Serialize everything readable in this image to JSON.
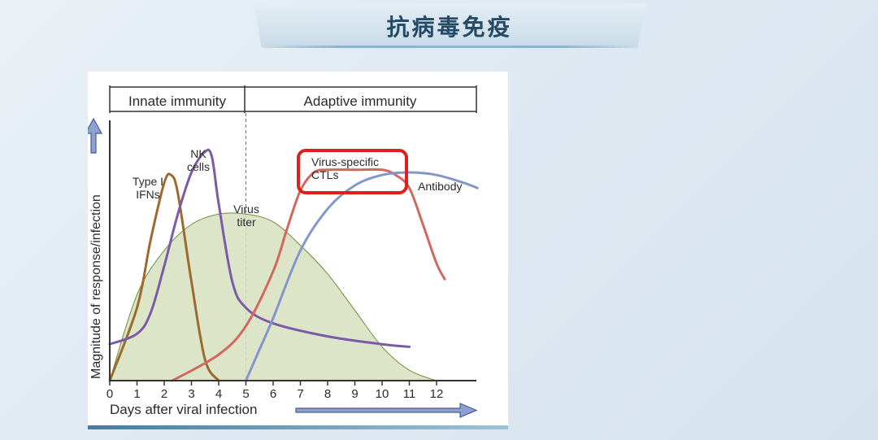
{
  "page": {
    "title": "抗病毒免疫"
  },
  "chart_data": {
    "type": "line",
    "phases": {
      "innate": "Innate immunity",
      "adaptive": "Adaptive immunity"
    },
    "xlabel": "Days after viral infection",
    "ylabel": "Magnitude of response/infection",
    "x_ticks": [
      "0",
      "1",
      "2",
      "3",
      "4",
      "5",
      "6",
      "7",
      "8",
      "9",
      "10",
      "11",
      "12"
    ],
    "xlim": [
      0,
      13.5
    ],
    "ylim": [
      0,
      1
    ],
    "phase_boundary_day": 5,
    "series": [
      {
        "label_lines": [
          "Type I",
          "IFNs"
        ],
        "color": "#9c6a2e",
        "x": [
          0,
          1,
          1.5,
          2,
          2.25,
          2.5,
          3,
          3.5,
          4
        ],
        "y": [
          0,
          0.28,
          0.54,
          0.76,
          0.79,
          0.72,
          0.38,
          0.08,
          0
        ]
      },
      {
        "label_lines": [
          "NK",
          "cells"
        ],
        "color": "#7b5aa6",
        "x": [
          0,
          1,
          1.5,
          2,
          2.5,
          3,
          3.5,
          3.75,
          4,
          4.5,
          5,
          6,
          8,
          10,
          11
        ],
        "y": [
          0.14,
          0.18,
          0.26,
          0.44,
          0.64,
          0.8,
          0.88,
          0.86,
          0.68,
          0.38,
          0.28,
          0.22,
          0.17,
          0.14,
          0.13
        ]
      },
      {
        "label_lines": [
          "Virus",
          "titer"
        ],
        "color": "#6e8a3b",
        "fill": "#d7e0bf",
        "x": [
          0,
          1,
          2,
          3,
          4,
          5,
          6,
          7,
          8,
          9,
          10,
          11,
          12
        ],
        "y": [
          0,
          0.33,
          0.5,
          0.6,
          0.64,
          0.64,
          0.61,
          0.52,
          0.41,
          0.27,
          0.13,
          0.04,
          0
        ]
      },
      {
        "label_lines": [
          "Virus-specific",
          "CTLs"
        ],
        "color": "#d2675f",
        "x": [
          2.3,
          4,
          5,
          6,
          6.5,
          7,
          7.5,
          8,
          9,
          10,
          10.5,
          11,
          11.5,
          12,
          12.3
        ],
        "y": [
          0,
          0.1,
          0.21,
          0.42,
          0.58,
          0.73,
          0.8,
          0.81,
          0.81,
          0.81,
          0.79,
          0.74,
          0.6,
          0.45,
          0.39
        ]
      },
      {
        "label_lines": [
          "Antibody"
        ],
        "color": "#8296c9",
        "x": [
          5,
          5.5,
          6,
          7,
          8,
          9,
          10,
          11,
          12,
          13,
          13.5
        ],
        "y": [
          0,
          0.12,
          0.24,
          0.5,
          0.66,
          0.75,
          0.79,
          0.8,
          0.79,
          0.76,
          0.74
        ]
      }
    ],
    "highlight": {
      "series": "Virus-specific CTLs",
      "color": "#e01e1e"
    }
  }
}
